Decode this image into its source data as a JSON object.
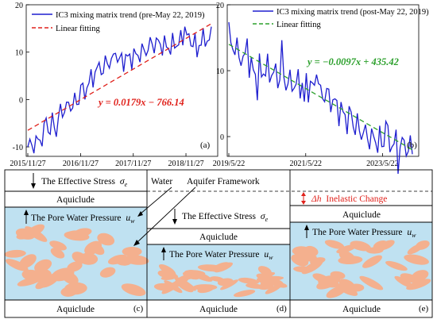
{
  "chart_data": [
    {
      "type": "line",
      "panel_label": "(a)",
      "series": [
        {
          "name": "IC3 mixing matrix trend (pre-May 22, 2019)",
          "color": "#1f1fcf",
          "x": [
            "2015/11/27",
            "2016/02/01",
            "2016/05/01",
            "2016/08/01",
            "2016/11/27",
            "2017/02/01",
            "2017/05/01",
            "2017/08/01",
            "2017/11/27",
            "2018/02/01",
            "2018/05/01",
            "2018/08/01",
            "2018/11/27",
            "2019/02/01",
            "2019/05/22"
          ],
          "y": [
            -10,
            -9,
            -6,
            -2,
            0,
            4,
            8,
            8,
            9,
            10,
            12,
            11,
            13,
            12,
            13
          ]
        },
        {
          "name": "Linear fitting",
          "color": "#e0211b",
          "dashed": true,
          "x": [
            "2015/11/27",
            "2019/05/22"
          ],
          "y": [
            -6.5,
            16
          ]
        }
      ],
      "equation": "y = 0.0179x − 766.14",
      "xticks": [
        "2015/11/27",
        "2016/11/27",
        "2017/11/27",
        "2018/11/27"
      ],
      "yticks": [
        "-10",
        "0",
        "10",
        "20"
      ],
      "ylim": [
        -12,
        20
      ]
    },
    {
      "type": "line",
      "panel_label": "(b)",
      "series": [
        {
          "name": "IC3 mixing matrix trend (post-May 22, 2019)",
          "color": "#1f1fcf",
          "x": [
            "2019/05/22",
            "2019/08/01",
            "2020/01/01",
            "2020/06/01",
            "2021/01/01",
            "2021/05/22",
            "2022/01/01",
            "2022/06/01",
            "2023/01/01",
            "2023/05/22",
            "2023/11/01",
            "2024/03/01"
          ],
          "y": [
            15,
            13,
            10,
            10,
            8,
            8,
            6,
            3,
            0,
            -1,
            -1,
            -2
          ]
        },
        {
          "name": "Linear fitting",
          "color": "#2ca02c",
          "dashed": true,
          "x": [
            "2019/05/22",
            "2024/03/01"
          ],
          "y": [
            14,
            -2
          ]
        }
      ],
      "equation": "y = −0.0097x + 435.42",
      "xticks": [
        "2019/5/22",
        "2021/5/22",
        "2023/5/22"
      ],
      "yticks": [
        "0",
        "10",
        "20"
      ],
      "ylim": [
        -3,
        20
      ]
    }
  ],
  "panel_c": {
    "effective_stress": "The Effective Stress",
    "sigma": "σ",
    "sigma_sub": "e",
    "aquiclude_top": "Aquiclude",
    "pore_pressure": "The Pore Water Pressure",
    "u": "u",
    "u_sub": "w",
    "aquiclude_bottom": "Aquiclude",
    "label": "(c)"
  },
  "panel_d": {
    "water": "Water",
    "aquifer_framework": "Aquifer Framework",
    "effective_stress": "The Effective Stress",
    "sigma": "σ",
    "sigma_sub": "e",
    "aquiclude_top": "Aquiclude",
    "pore_pressure": "The Pore Water Pressure",
    "u": "u",
    "u_sub": "w",
    "aquiclude_bottom": "Aquiclude",
    "label": "(d)"
  },
  "panel_e": {
    "dh": "Δh",
    "inelastic": "Inelastic Change",
    "aquiclude_top": "Aquiclude",
    "pore_pressure": "The Pore Water Pressure",
    "u": "u",
    "u_sub": "w",
    "aquiclude_bottom": "Aquiclude",
    "label": "(e)"
  },
  "colors": {
    "water": "#bfe1f1",
    "grain": "#f4b08e",
    "trend": "#1f1fcf",
    "fit_a": "#e0211b",
    "fit_b": "#2ca02c",
    "dh_arrow": "#e0211b"
  }
}
